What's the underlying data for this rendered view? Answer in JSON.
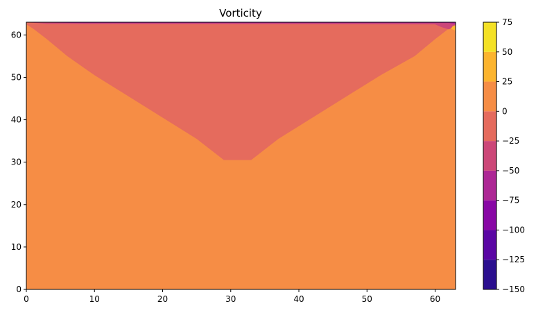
{
  "chart_data": {
    "type": "heatmap",
    "title": "Vorticity",
    "xlabel": "",
    "ylabel": "",
    "xlim": [
      0,
      63
    ],
    "ylim": [
      0,
      63
    ],
    "xticks": [
      0,
      10,
      20,
      30,
      40,
      50,
      60
    ],
    "yticks": [
      0,
      10,
      20,
      30,
      40,
      50,
      60
    ],
    "grid": false,
    "colorbar": {
      "levels": [
        -150,
        -125,
        -100,
        -75,
        -50,
        -25,
        0,
        25,
        50,
        75
      ],
      "tick_labels": [
        "−150",
        "−125",
        "−100",
        "−75",
        "−50",
        "−25",
        "0",
        "25",
        "50",
        "75"
      ],
      "colors": [
        "#2b0f8f",
        "#5a06a4",
        "#8807a5",
        "#ad2795",
        "#cc4778",
        "#e56b5d",
        "#f68d45",
        "#fcb42e",
        "#f4e125"
      ]
    },
    "regions": [
      {
        "band": [
          0,
          25
        ],
        "color": "#f68d45",
        "polygon": [
          [
            0,
            0
          ],
          [
            63,
            0
          ],
          [
            63,
            63
          ],
          [
            0,
            63
          ]
        ]
      },
      {
        "band": [
          -25,
          0
        ],
        "color": "#e56b5d",
        "polygon": [
          [
            0,
            63
          ],
          [
            0,
            62.5
          ],
          [
            1,
            61.5
          ],
          [
            3,
            59
          ],
          [
            6,
            55
          ],
          [
            10,
            50.5
          ],
          [
            15,
            45.5
          ],
          [
            20,
            40.5
          ],
          [
            25,
            35.5
          ],
          [
            29,
            30.5
          ],
          [
            33,
            30.5
          ],
          [
            37,
            35.5
          ],
          [
            42,
            40.5
          ],
          [
            47,
            45.5
          ],
          [
            52,
            50.5
          ],
          [
            57,
            55
          ],
          [
            60,
            59
          ],
          [
            62,
            61.5
          ],
          [
            63,
            62.5
          ],
          [
            63,
            63
          ]
        ]
      },
      {
        "band": [
          -50,
          -25
        ],
        "color": "#cc4778",
        "polygon": [
          [
            0,
            63
          ],
          [
            3,
            62.6
          ],
          [
            60,
            62.5
          ],
          [
            61,
            61.8
          ],
          [
            62,
            61.3
          ],
          [
            63,
            62
          ],
          [
            63,
            63
          ]
        ]
      },
      {
        "band": [
          -75,
          -50
        ],
        "color": "#ad2795",
        "polygon": [
          [
            0,
            63
          ],
          [
            8,
            62.8
          ],
          [
            62,
            62.8
          ],
          [
            63,
            62.5
          ],
          [
            63,
            63
          ]
        ]
      },
      {
        "band": [
          25,
          50
        ],
        "color": "#fcb42e",
        "polygon": [
          [
            62.3,
            61.5
          ],
          [
            63,
            61
          ],
          [
            63,
            62.3
          ],
          [
            62.6,
            62.1
          ]
        ]
      }
    ]
  }
}
